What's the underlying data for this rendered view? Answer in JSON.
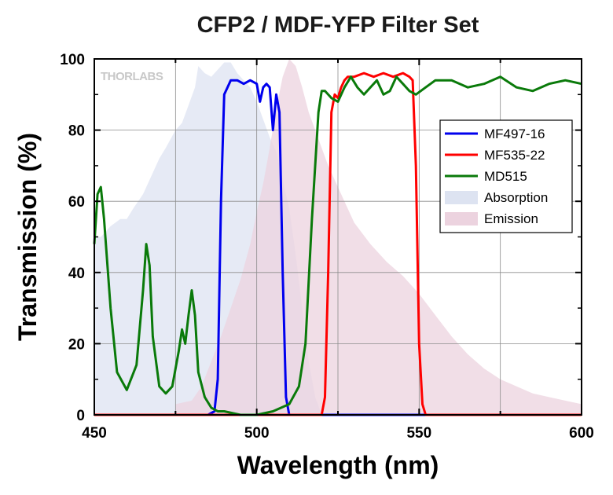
{
  "chart_data": {
    "type": "line",
    "title": "CFP2 / MDF-YFP Filter Set",
    "xlabel": "Wavelength (nm)",
    "ylabel": "Transmission (%)",
    "xlim": [
      450,
      600
    ],
    "ylim": [
      0,
      100
    ],
    "xticks": [
      450,
      500,
      550,
      600
    ],
    "yticks": [
      0,
      20,
      40,
      60,
      80,
      100
    ],
    "grid": true,
    "legend_position": "right",
    "watermark": "THORLABS",
    "series": [
      {
        "name": "MF497-16",
        "kind": "line",
        "color": "#0000ee",
        "x": [
          450,
          485,
          487,
          488,
          489,
          490,
          491,
          492,
          494,
          496,
          498,
          500,
          501,
          502,
          503,
          504,
          505,
          506,
          507,
          508,
          509,
          510,
          600
        ],
        "y": [
          0,
          0,
          1,
          10,
          60,
          90,
          92,
          94,
          94,
          93,
          94,
          93,
          88,
          92,
          93,
          92,
          80,
          90,
          85,
          40,
          5,
          0,
          0
        ]
      },
      {
        "name": "MF535-22",
        "kind": "line",
        "color": "#ff0000",
        "x": [
          450,
          520,
          521,
          522,
          523,
          524,
          525,
          526,
          527,
          528,
          530,
          533,
          536,
          539,
          542,
          545,
          547,
          548,
          549,
          550,
          551,
          552,
          600
        ],
        "y": [
          0,
          0,
          5,
          40,
          85,
          90,
          89,
          92,
          94,
          95,
          95,
          96,
          95,
          96,
          95,
          96,
          95,
          94,
          70,
          20,
          3,
          0,
          0
        ]
      },
      {
        "name": "MD515",
        "kind": "line",
        "color": "#0a7a0a",
        "x": [
          450,
          451,
          452,
          453,
          455,
          457,
          460,
          463,
          465,
          466,
          467,
          468,
          470,
          472,
          474,
          476,
          477,
          478,
          479,
          480,
          481,
          482,
          484,
          486,
          488,
          490,
          495,
          500,
          505,
          510,
          513,
          515,
          517,
          519,
          520,
          521,
          522,
          523,
          525,
          527,
          529,
          531,
          533,
          535,
          537,
          539,
          541,
          543,
          545,
          547,
          549,
          552,
          555,
          560,
          565,
          570,
          575,
          580,
          585,
          590,
          595,
          600
        ],
        "y": [
          48,
          62,
          64,
          55,
          30,
          12,
          7,
          14,
          35,
          48,
          42,
          22,
          8,
          6,
          8,
          18,
          24,
          20,
          28,
          35,
          28,
          12,
          5,
          2,
          1,
          1,
          0,
          0,
          1,
          3,
          8,
          20,
          55,
          85,
          91,
          91,
          90,
          89,
          88,
          92,
          95,
          92,
          90,
          92,
          94,
          90,
          91,
          95,
          93,
          91,
          90,
          92,
          94,
          94,
          92,
          93,
          95,
          92,
          91,
          93,
          94,
          93
        ]
      },
      {
        "name": "Absorption",
        "kind": "area",
        "color": "#dde3f1",
        "x": [
          450,
          452,
          455,
          458,
          460,
          462,
          465,
          468,
          470,
          472,
          475,
          477,
          479,
          481,
          482,
          484,
          486,
          488,
          490,
          492,
          494,
          496,
          498,
          500,
          502,
          504,
          506,
          508,
          510,
          512,
          514,
          516,
          518,
          520
        ],
        "y": [
          50,
          50,
          53,
          55,
          55,
          58,
          62,
          68,
          72,
          75,
          80,
          82,
          87,
          92,
          98,
          96,
          95,
          97,
          99,
          99,
          96,
          94,
          92,
          88,
          83,
          78,
          74,
          66,
          58,
          45,
          30,
          15,
          5,
          0
        ]
      },
      {
        "name": "Emission",
        "kind": "area",
        "color": "#ecd3df",
        "x": [
          475,
          480,
          483,
          486,
          489,
          492,
          495,
          498,
          500,
          502,
          504,
          506,
          508,
          510,
          512,
          514,
          516,
          518,
          520,
          522,
          525,
          528,
          530,
          535,
          540,
          545,
          550,
          555,
          560,
          565,
          570,
          575,
          580,
          585,
          590,
          595,
          600
        ],
        "y": [
          3,
          4,
          8,
          15,
          22,
          30,
          38,
          48,
          57,
          65,
          75,
          86,
          95,
          100,
          98,
          92,
          85,
          80,
          75,
          70,
          64,
          58,
          54,
          48,
          43,
          39,
          34,
          28,
          22,
          17,
          13,
          10,
          8,
          6,
          5,
          4,
          3
        ]
      }
    ]
  }
}
